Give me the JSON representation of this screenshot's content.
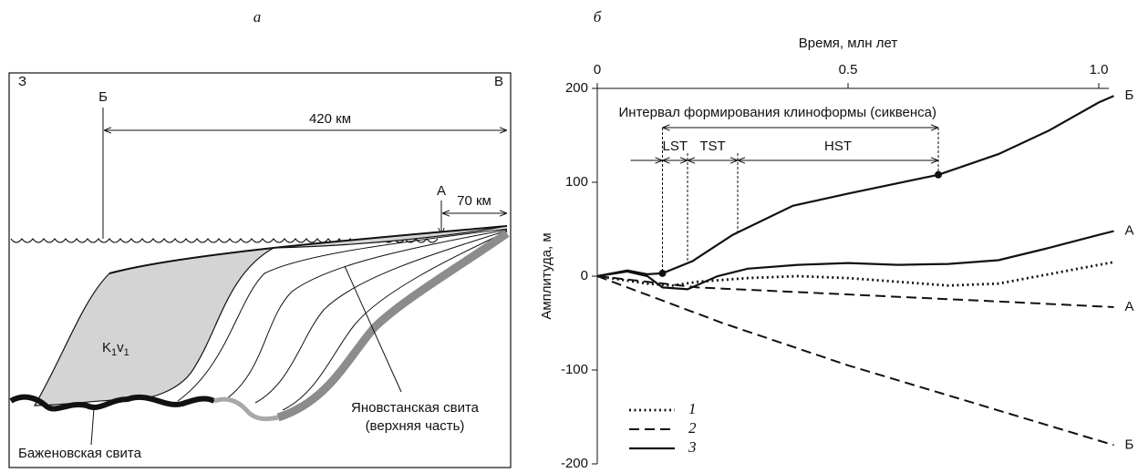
{
  "panel_a": {
    "panel_label": "а",
    "west": "З",
    "east": "В",
    "point_b": "Б",
    "point_a": "А",
    "distance_b": "420 км",
    "distance_a": "70 км",
    "formation_label": [
      "K",
      "1",
      "v",
      "1"
    ],
    "yanovstan_label": [
      "Яновстанская свита",
      "(верхняя часть)"
    ],
    "bazhenov_label": "Баженовская свита"
  },
  "chart_data": {
    "type": "line",
    "panel_label": "б",
    "x_label": "Время, млн лет",
    "y_label": "Амплитуда, м",
    "xlim": [
      0,
      1.02
    ],
    "xticks": [
      0,
      0.5,
      {
        "value": 1,
        "label": "1.0"
      }
    ],
    "ylim": [
      -200,
      200
    ],
    "yticks": [
      -200,
      -100,
      0,
      100,
      200
    ],
    "series": [
      {
        "name": "Б",
        "style": "solid",
        "color": "#111111",
        "x": [
          0,
          0.06,
          0.1,
          0.13,
          0.19,
          0.27,
          0.39,
          0.5,
          0.68,
          0.8,
          0.9,
          1.0,
          1.03
        ],
        "values": [
          0,
          6,
          2,
          3,
          16,
          44,
          75,
          88,
          108,
          130,
          155,
          185,
          192
        ],
        "marked_points": [
          3,
          8
        ]
      },
      {
        "name": "А",
        "style": "solid",
        "color": "#111111",
        "x": [
          0,
          0.06,
          0.1,
          0.13,
          0.18,
          0.24,
          0.3,
          0.4,
          0.5,
          0.6,
          0.7,
          0.8,
          0.9,
          1.0,
          1.03
        ],
        "values": [
          0,
          5,
          0,
          -12,
          -14,
          0,
          8,
          12,
          14,
          12,
          13,
          17,
          30,
          44,
          48
        ]
      },
      {
        "style": "dotted",
        "color": "#111111",
        "x": [
          0,
          0.1,
          0.15,
          0.2,
          0.3,
          0.4,
          0.5,
          0.6,
          0.7,
          0.8,
          0.9,
          1.0,
          1.03
        ],
        "values": [
          0,
          -8,
          -10,
          -6,
          -2,
          0,
          -2,
          -6,
          -10,
          -8,
          2,
          12,
          15
        ]
      },
      {
        "name": "А",
        "style": "dashed",
        "color": "#111111",
        "x": [
          0,
          0.2,
          0.4,
          0.6,
          0.8,
          1.03
        ],
        "values": [
          0,
          -12,
          -17,
          -22,
          -27,
          -33
        ]
      },
      {
        "name": "Б",
        "style": "dashed",
        "color": "#111111",
        "x": [
          0,
          0.25,
          0.5,
          0.75,
          1.03
        ],
        "values": [
          0,
          -50,
          -95,
          -135,
          -180
        ]
      }
    ],
    "interval": {
      "label": "Интервал формирования клиноформы (сиквенса)",
      "from": 0.13,
      "to": 0.68
    },
    "phases": [
      {
        "label": "LST",
        "from": 0.13,
        "to": 0.18
      },
      {
        "label": "TST",
        "from": 0.18,
        "to": 0.28
      },
      {
        "label": "HST",
        "from": 0.28,
        "to": 0.68
      }
    ],
    "legend": [
      {
        "label": "1",
        "style": "dotted"
      },
      {
        "label": "2",
        "style": "dashed"
      },
      {
        "label": "3",
        "style": "solid"
      }
    ],
    "legend_position": "lower left"
  }
}
